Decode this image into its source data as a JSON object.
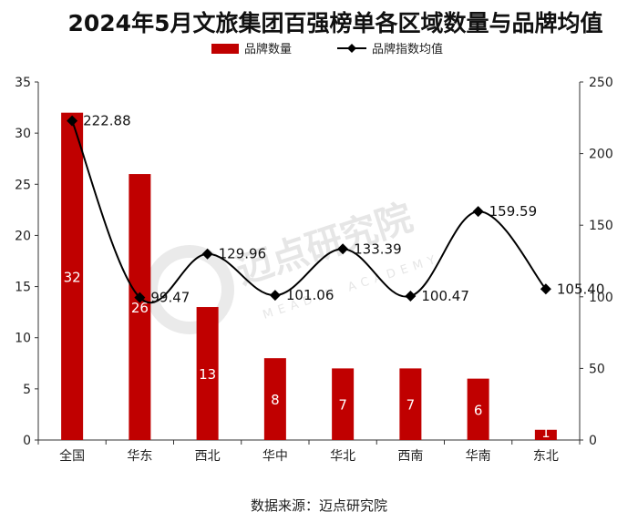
{
  "chart_data": {
    "type": "bar+line",
    "title": "2024年5月文旅集团百强榜单各区域数量与品牌均值",
    "categories": [
      "全国",
      "华东",
      "西北",
      "华中",
      "华北",
      "西南",
      "华南",
      "东北"
    ],
    "series": [
      {
        "name": "品牌数量",
        "type": "bar",
        "axis": "left",
        "color": "#c00000",
        "values": [
          32,
          26,
          13,
          8,
          7,
          7,
          6,
          1
        ],
        "labels": [
          "32",
          "26",
          "13",
          "8",
          "7",
          "7",
          "6",
          "1"
        ]
      },
      {
        "name": "品牌指数均值",
        "type": "line",
        "axis": "right",
        "color": "#000000",
        "marker": "diamond",
        "values": [
          222.88,
          99.47,
          129.96,
          101.06,
          133.39,
          100.47,
          159.59,
          105.4
        ],
        "labels": [
          "222.88",
          "99.47",
          "129.96",
          "101.06",
          "133.39",
          "100.47",
          "159.59",
          "105.40"
        ]
      }
    ],
    "y_left": {
      "min": 0,
      "max": 35,
      "ticks": [
        "0",
        "5",
        "10",
        "15",
        "20",
        "25",
        "30",
        "35"
      ]
    },
    "y_right": {
      "min": 0,
      "max": 250,
      "ticks": [
        "0",
        "50",
        "100",
        "150",
        "200",
        "250"
      ]
    },
    "grid": false,
    "legend_position": "top-center",
    "source": "数据来源：迈点研究院",
    "watermark": {
      "text": "迈点研究院",
      "sub": "MEADIN ACADEMY",
      "color": "#e6e6e6"
    }
  }
}
